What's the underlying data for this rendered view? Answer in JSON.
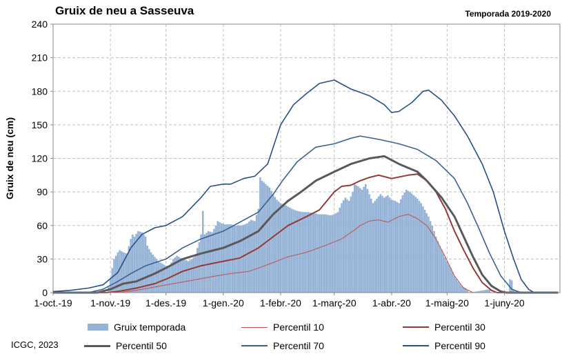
{
  "chart_data": {
    "type": "area",
    "title": "Gruix de neu a Sasseuva",
    "subtitle": "Temporada 2019-2020",
    "ylabel": "Gruix de neu (cm)",
    "xlabel": "",
    "ylim": [
      0,
      240
    ],
    "yticks": [
      0,
      30,
      60,
      90,
      120,
      150,
      180,
      210,
      240
    ],
    "xlim": [
      "2019-10-01",
      "2020-07-01"
    ],
    "xticks": [
      {
        "date": "2019-10-01",
        "label": "1-oct.-19"
      },
      {
        "date": "2019-11-01",
        "label": "1-nov.-19"
      },
      {
        "date": "2019-12-01",
        "label": "1-des.-19"
      },
      {
        "date": "2020-01-01",
        "label": "1-gen.-20"
      },
      {
        "date": "2020-02-01",
        "label": "1-febr.-20"
      },
      {
        "date": "2020-03-01",
        "label": "1-març-20"
      },
      {
        "date": "2020-04-01",
        "label": "1-abr.-20"
      },
      {
        "date": "2020-05-01",
        "label": "1-maig-20"
      },
      {
        "date": "2020-06-01",
        "label": "1-juny-20"
      }
    ],
    "grid": true,
    "legend_position": "bottom",
    "bar_series": {
      "name": "Gruix temporada",
      "color": "#95b3d7",
      "points": [
        [
          "2019-10-30",
          0
        ],
        [
          "2019-10-31",
          5
        ],
        [
          "2019-11-01",
          12
        ],
        [
          "2019-11-02",
          22
        ],
        [
          "2019-11-03",
          30
        ],
        [
          "2019-11-05",
          36
        ],
        [
          "2019-11-06",
          38
        ],
        [
          "2019-11-08",
          36
        ],
        [
          "2019-11-10",
          35
        ],
        [
          "2019-11-12",
          48
        ],
        [
          "2019-11-13",
          52
        ],
        [
          "2019-11-14",
          50
        ],
        [
          "2019-11-16",
          55
        ],
        [
          "2019-11-18",
          54
        ],
        [
          "2019-11-20",
          50
        ],
        [
          "2019-11-21",
          42
        ],
        [
          "2019-11-23",
          36
        ],
        [
          "2019-11-25",
          32
        ],
        [
          "2019-11-27",
          28
        ],
        [
          "2019-11-29",
          26
        ],
        [
          "2019-12-01",
          24
        ],
        [
          "2019-12-03",
          24
        ],
        [
          "2019-12-05",
          30
        ],
        [
          "2019-12-07",
          33
        ],
        [
          "2019-12-09",
          31
        ],
        [
          "2019-12-11",
          30
        ],
        [
          "2019-12-13",
          28
        ],
        [
          "2019-12-15",
          30
        ],
        [
          "2019-12-17",
          33
        ],
        [
          "2019-12-18",
          40
        ],
        [
          "2019-12-19",
          45
        ],
        [
          "2019-12-20",
          52
        ],
        [
          "2019-12-21",
          73
        ],
        [
          "2019-12-22",
          52
        ],
        [
          "2019-12-24",
          55
        ],
        [
          "2019-12-26",
          54
        ],
        [
          "2019-12-28",
          60
        ],
        [
          "2019-12-29",
          64
        ],
        [
          "2019-12-31",
          62
        ],
        [
          "2020-01-02",
          61
        ],
        [
          "2020-01-05",
          61
        ],
        [
          "2020-01-08",
          60
        ],
        [
          "2020-01-11",
          60
        ],
        [
          "2020-01-14",
          62
        ],
        [
          "2020-01-16",
          65
        ],
        [
          "2020-01-18",
          64
        ],
        [
          "2020-01-20",
          75
        ],
        [
          "2020-01-21",
          103
        ],
        [
          "2020-01-22",
          100
        ],
        [
          "2020-01-24",
          97
        ],
        [
          "2020-01-26",
          94
        ],
        [
          "2020-01-28",
          88
        ],
        [
          "2020-01-30",
          83
        ],
        [
          "2020-02-01",
          80
        ],
        [
          "2020-02-04",
          78
        ],
        [
          "2020-02-07",
          75
        ],
        [
          "2020-02-10",
          73
        ],
        [
          "2020-02-13",
          72
        ],
        [
          "2020-02-16",
          72
        ],
        [
          "2020-02-19",
          71
        ],
        [
          "2020-02-22",
          70
        ],
        [
          "2020-02-25",
          70
        ],
        [
          "2020-02-28",
          69
        ],
        [
          "2020-03-01",
          70
        ],
        [
          "2020-03-03",
          72
        ],
        [
          "2020-03-05",
          80
        ],
        [
          "2020-03-07",
          85
        ],
        [
          "2020-03-09",
          82
        ],
        [
          "2020-03-11",
          90
        ],
        [
          "2020-03-12",
          97
        ],
        [
          "2020-03-14",
          95
        ],
        [
          "2020-03-16",
          92
        ],
        [
          "2020-03-18",
          97
        ],
        [
          "2020-03-20",
          88
        ],
        [
          "2020-03-22",
          80
        ],
        [
          "2020-03-24",
          84
        ],
        [
          "2020-03-26",
          88
        ],
        [
          "2020-03-28",
          85
        ],
        [
          "2020-03-30",
          87
        ],
        [
          "2020-04-01",
          83
        ],
        [
          "2020-04-03",
          82
        ],
        [
          "2020-04-05",
          80
        ],
        [
          "2020-04-07",
          87
        ],
        [
          "2020-04-09",
          92
        ],
        [
          "2020-04-11",
          90
        ],
        [
          "2020-04-13",
          87
        ],
        [
          "2020-04-15",
          84
        ],
        [
          "2020-04-17",
          80
        ],
        [
          "2020-04-19",
          74
        ],
        [
          "2020-04-21",
          68
        ],
        [
          "2020-04-23",
          60
        ],
        [
          "2020-04-25",
          50
        ],
        [
          "2020-04-27",
          42
        ],
        [
          "2020-04-29",
          35
        ],
        [
          "2020-05-01",
          28
        ],
        [
          "2020-05-03",
          22
        ],
        [
          "2020-05-05",
          15
        ],
        [
          "2020-05-07",
          10
        ],
        [
          "2020-05-09",
          6
        ],
        [
          "2020-05-11",
          4
        ],
        [
          "2020-05-13",
          0
        ],
        [
          "2020-05-24",
          3
        ],
        [
          "2020-05-25",
          0
        ],
        [
          "2020-06-03",
          0
        ],
        [
          "2020-06-04",
          12
        ],
        [
          "2020-06-05",
          11
        ],
        [
          "2020-06-06",
          2
        ],
        [
          "2020-06-07",
          0
        ]
      ]
    },
    "series": [
      {
        "name": "Percentil 10",
        "color": "#c0504d",
        "width": 1,
        "points": [
          [
            "2019-10-01",
            0
          ],
          [
            "2019-11-05",
            0
          ],
          [
            "2019-11-15",
            2
          ],
          [
            "2019-11-25",
            5
          ],
          [
            "2019-12-05",
            8
          ],
          [
            "2019-12-15",
            11
          ],
          [
            "2019-12-25",
            14
          ],
          [
            "2020-01-05",
            17
          ],
          [
            "2020-01-15",
            19
          ],
          [
            "2020-01-25",
            25
          ],
          [
            "2020-02-05",
            32
          ],
          [
            "2020-02-15",
            36
          ],
          [
            "2020-02-25",
            42
          ],
          [
            "2020-03-05",
            48
          ],
          [
            "2020-03-12",
            56
          ],
          [
            "2020-03-15",
            60
          ],
          [
            "2020-03-20",
            64
          ],
          [
            "2020-03-25",
            65
          ],
          [
            "2020-03-30",
            63
          ],
          [
            "2020-04-05",
            68
          ],
          [
            "2020-04-10",
            70
          ],
          [
            "2020-04-15",
            66
          ],
          [
            "2020-04-20",
            60
          ],
          [
            "2020-04-25",
            48
          ],
          [
            "2020-04-30",
            32
          ],
          [
            "2020-05-05",
            15
          ],
          [
            "2020-05-10",
            4
          ],
          [
            "2020-05-15",
            0
          ],
          [
            "2020-06-30",
            0
          ]
        ]
      },
      {
        "name": "Percentil 30",
        "color": "#953735",
        "width": 2,
        "points": [
          [
            "2019-10-01",
            0
          ],
          [
            "2019-10-30",
            0
          ],
          [
            "2019-11-05",
            1
          ],
          [
            "2019-11-15",
            4
          ],
          [
            "2019-11-25",
            8
          ],
          [
            "2019-12-01",
            12
          ],
          [
            "2019-12-10",
            19
          ],
          [
            "2019-12-20",
            24
          ],
          [
            "2020-01-01",
            28
          ],
          [
            "2020-01-10",
            31
          ],
          [
            "2020-01-20",
            40
          ],
          [
            "2020-01-28",
            50
          ],
          [
            "2020-02-05",
            60
          ],
          [
            "2020-02-15",
            68
          ],
          [
            "2020-02-22",
            74
          ],
          [
            "2020-03-01",
            90
          ],
          [
            "2020-03-05",
            95
          ],
          [
            "2020-03-10",
            96
          ],
          [
            "2020-03-15",
            100
          ],
          [
            "2020-03-20",
            103
          ],
          [
            "2020-03-25",
            105
          ],
          [
            "2020-04-01",
            102
          ],
          [
            "2020-04-10",
            105
          ],
          [
            "2020-04-15",
            106
          ],
          [
            "2020-04-20",
            100
          ],
          [
            "2020-04-25",
            90
          ],
          [
            "2020-04-30",
            75
          ],
          [
            "2020-05-05",
            55
          ],
          [
            "2020-05-10",
            38
          ],
          [
            "2020-05-15",
            22
          ],
          [
            "2020-05-20",
            9
          ],
          [
            "2020-05-25",
            2
          ],
          [
            "2020-05-28",
            0
          ],
          [
            "2020-06-30",
            0
          ]
        ]
      },
      {
        "name": "Percentil 50",
        "color": "#595959",
        "width": 3,
        "points": [
          [
            "2019-10-01",
            0
          ],
          [
            "2019-10-25",
            0
          ],
          [
            "2019-11-01",
            3
          ],
          [
            "2019-11-08",
            8
          ],
          [
            "2019-11-15",
            10
          ],
          [
            "2019-11-25",
            17
          ],
          [
            "2019-12-01",
            22
          ],
          [
            "2019-12-10",
            30
          ],
          [
            "2019-12-20",
            35
          ],
          [
            "2020-01-01",
            40
          ],
          [
            "2020-01-10",
            46
          ],
          [
            "2020-01-20",
            55
          ],
          [
            "2020-01-28",
            70
          ],
          [
            "2020-02-05",
            82
          ],
          [
            "2020-02-12",
            90
          ],
          [
            "2020-02-20",
            100
          ],
          [
            "2020-03-01",
            108
          ],
          [
            "2020-03-10",
            115
          ],
          [
            "2020-03-20",
            120
          ],
          [
            "2020-03-28",
            122
          ],
          [
            "2020-04-05",
            115
          ],
          [
            "2020-04-15",
            108
          ],
          [
            "2020-04-20",
            100
          ],
          [
            "2020-04-28",
            85
          ],
          [
            "2020-05-05",
            68
          ],
          [
            "2020-05-10",
            50
          ],
          [
            "2020-05-15",
            32
          ],
          [
            "2020-05-20",
            16
          ],
          [
            "2020-05-25",
            6
          ],
          [
            "2020-05-30",
            1
          ],
          [
            "2020-06-02",
            0
          ],
          [
            "2020-06-30",
            0
          ]
        ]
      },
      {
        "name": "Percentil 70",
        "color": "#376092",
        "width": 1.6,
        "points": [
          [
            "2019-10-01",
            0
          ],
          [
            "2019-10-20",
            0
          ],
          [
            "2019-10-28",
            3
          ],
          [
            "2019-11-05",
            10
          ],
          [
            "2019-11-12",
            17
          ],
          [
            "2019-11-20",
            24
          ],
          [
            "2019-12-01",
            30
          ],
          [
            "2019-12-10",
            40
          ],
          [
            "2019-12-20",
            48
          ],
          [
            "2020-01-01",
            55
          ],
          [
            "2020-01-10",
            63
          ],
          [
            "2020-01-20",
            72
          ],
          [
            "2020-01-28",
            88
          ],
          [
            "2020-02-02",
            100
          ],
          [
            "2020-02-10",
            117
          ],
          [
            "2020-02-20",
            130
          ],
          [
            "2020-03-01",
            133
          ],
          [
            "2020-03-10",
            138
          ],
          [
            "2020-03-15",
            140
          ],
          [
            "2020-03-25",
            137
          ],
          [
            "2020-04-05",
            133
          ],
          [
            "2020-04-15",
            128
          ],
          [
            "2020-04-25",
            118
          ],
          [
            "2020-05-05",
            102
          ],
          [
            "2020-05-12",
            80
          ],
          [
            "2020-05-18",
            58
          ],
          [
            "2020-05-24",
            35
          ],
          [
            "2020-05-30",
            15
          ],
          [
            "2020-06-05",
            3
          ],
          [
            "2020-06-10",
            0
          ],
          [
            "2020-06-30",
            0
          ]
        ]
      },
      {
        "name": "Percentil 90",
        "color": "#254e89",
        "width": 1.6,
        "points": [
          [
            "2019-10-01",
            1
          ],
          [
            "2019-10-10",
            2
          ],
          [
            "2019-10-20",
            4
          ],
          [
            "2019-10-28",
            7
          ],
          [
            "2019-11-05",
            18
          ],
          [
            "2019-11-12",
            40
          ],
          [
            "2019-11-18",
            52
          ],
          [
            "2019-11-25",
            58
          ],
          [
            "2019-12-01",
            60
          ],
          [
            "2019-12-10",
            68
          ],
          [
            "2019-12-20",
            85
          ],
          [
            "2019-12-25",
            95
          ],
          [
            "2020-01-01",
            97
          ],
          [
            "2020-01-05",
            97
          ],
          [
            "2020-01-12",
            102
          ],
          [
            "2020-01-18",
            104
          ],
          [
            "2020-01-25",
            115
          ],
          [
            "2020-02-01",
            150
          ],
          [
            "2020-02-08",
            168
          ],
          [
            "2020-02-15",
            178
          ],
          [
            "2020-02-22",
            187
          ],
          [
            "2020-03-01",
            190
          ],
          [
            "2020-03-10",
            182
          ],
          [
            "2020-03-20",
            176
          ],
          [
            "2020-03-28",
            168
          ],
          [
            "2020-04-01",
            161
          ],
          [
            "2020-04-05",
            162
          ],
          [
            "2020-04-12",
            170
          ],
          [
            "2020-04-18",
            180
          ],
          [
            "2020-04-21",
            181
          ],
          [
            "2020-04-28",
            172
          ],
          [
            "2020-05-05",
            158
          ],
          [
            "2020-05-12",
            140
          ],
          [
            "2020-05-20",
            115
          ],
          [
            "2020-05-26",
            90
          ],
          [
            "2020-06-01",
            55
          ],
          [
            "2020-06-06",
            30
          ],
          [
            "2020-06-10",
            12
          ],
          [
            "2020-06-14",
            3
          ],
          [
            "2020-06-17",
            0
          ],
          [
            "2020-06-30",
            0
          ]
        ]
      }
    ]
  },
  "credit": "ICGC, 2023"
}
